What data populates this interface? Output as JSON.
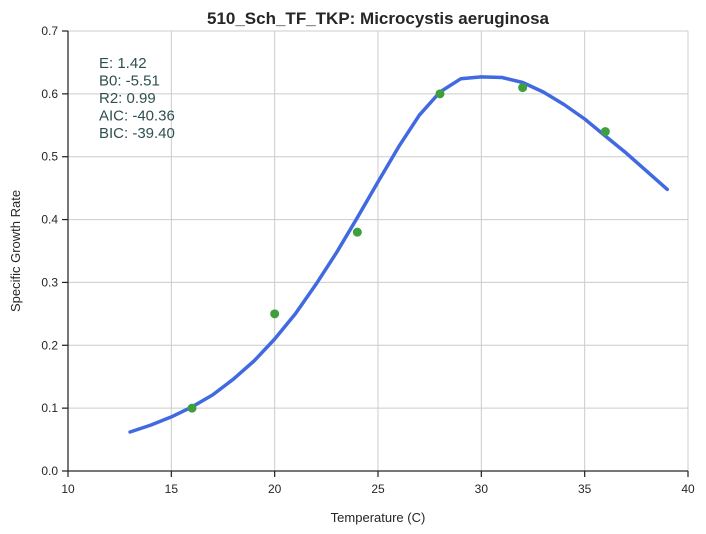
{
  "chart_data": {
    "type": "scatter",
    "title": "510_Sch_TF_TKP: Microcystis aeruginosa",
    "xlabel": "Temperature (C)",
    "ylabel": "Specific Growth Rate",
    "xlim": [
      10,
      40
    ],
    "ylim": [
      0,
      0.7
    ],
    "xticks": [
      "10",
      "15",
      "20",
      "25",
      "30",
      "35",
      "40"
    ],
    "yticks": [
      "0.0",
      "0.1",
      "0.2",
      "0.3",
      "0.4",
      "0.5",
      "0.6",
      "0.7"
    ],
    "grid": true,
    "series": [
      {
        "kind": "points",
        "color": "#3f9f3f",
        "x": [
          16,
          20,
          24,
          28,
          32,
          36
        ],
        "y": [
          0.1,
          0.25,
          0.38,
          0.6,
          0.61,
          0.54
        ]
      },
      {
        "kind": "fit-line",
        "color": "#4169e1",
        "x": [
          13,
          14,
          15,
          16,
          17,
          18,
          19,
          20,
          21,
          22,
          23,
          24,
          25,
          26,
          27,
          28,
          29,
          30,
          31,
          32,
          33,
          34,
          35,
          36,
          37,
          38,
          39
        ],
        "y": [
          0.062,
          0.073,
          0.086,
          0.102,
          0.121,
          0.146,
          0.175,
          0.21,
          0.25,
          0.297,
          0.348,
          0.403,
          0.46,
          0.516,
          0.566,
          0.603,
          0.624,
          0.627,
          0.626,
          0.618,
          0.603,
          0.583,
          0.56,
          0.533,
          0.506,
          0.477,
          0.448
        ]
      }
    ],
    "annotations": [
      "E:  1.42",
      "B0:  -5.51",
      "R2:  0.99",
      "AIC: -40.36",
      "BIC: -39.40"
    ]
  }
}
